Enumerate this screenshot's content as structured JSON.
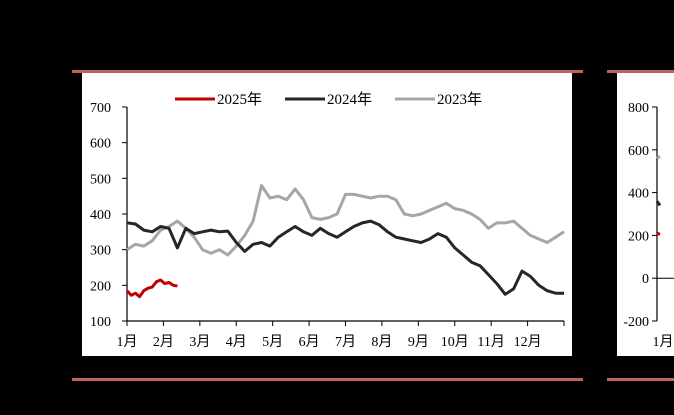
{
  "chart_data": [
    {
      "type": "line",
      "title": "",
      "xlabel": "",
      "ylabel": "",
      "ylim": [
        100,
        700
      ],
      "yticks": [
        100,
        200,
        300,
        400,
        500,
        600,
        700
      ],
      "xticks": [
        "1月",
        "2月",
        "3月",
        "4月",
        "5月",
        "6月",
        "7月",
        "8月",
        "9月",
        "10月",
        "11月",
        "12月"
      ],
      "grid": false,
      "legend_position": "top",
      "x_unit": "week-of-year (0-52)",
      "series": [
        {
          "name": "2025年",
          "color": "#c00000",
          "x": [
            0,
            0.5,
            1,
            1.5,
            2,
            2.5,
            3,
            3.5,
            4,
            4.5,
            5,
            5.5,
            6
          ],
          "values": [
            185,
            172,
            178,
            168,
            185,
            192,
            195,
            210,
            215,
            205,
            208,
            200,
            198
          ]
        },
        {
          "name": "2024年",
          "color": "#262626",
          "x": [
            0,
            1,
            2,
            3,
            4,
            5,
            6,
            7,
            8,
            9,
            10,
            11,
            12,
            13,
            14,
            15,
            16,
            17,
            18,
            19,
            20,
            21,
            22,
            23,
            24,
            25,
            26,
            27,
            28,
            29,
            30,
            31,
            32,
            33,
            34,
            35,
            36,
            37,
            38,
            39,
            40,
            41,
            42,
            43,
            44,
            45,
            46,
            47,
            48,
            49,
            50,
            51,
            52
          ],
          "values": [
            375,
            372,
            355,
            350,
            365,
            360,
            305,
            360,
            345,
            350,
            355,
            350,
            352,
            320,
            295,
            315,
            320,
            310,
            335,
            350,
            365,
            350,
            340,
            360,
            345,
            335,
            350,
            365,
            375,
            380,
            370,
            350,
            335,
            330,
            325,
            320,
            330,
            345,
            335,
            305,
            285,
            265,
            255,
            230,
            205,
            175,
            190,
            240,
            225,
            200,
            185,
            178,
            178
          ]
        },
        {
          "name": "2023年",
          "color": "#a6a6a6",
          "x": [
            0,
            1,
            2,
            3,
            4,
            5,
            6,
            7,
            8,
            9,
            10,
            11,
            12,
            13,
            14,
            15,
            16,
            17,
            18,
            19,
            20,
            21,
            22,
            23,
            24,
            25,
            26,
            27,
            28,
            29,
            30,
            31,
            32,
            33,
            34,
            35,
            36,
            37,
            38,
            39,
            40,
            41,
            42,
            43,
            44,
            45,
            46,
            47,
            48,
            49,
            50,
            51,
            52
          ],
          "values": [
            300,
            315,
            310,
            325,
            355,
            365,
            380,
            360,
            335,
            300,
            290,
            300,
            285,
            310,
            340,
            380,
            480,
            445,
            450,
            440,
            470,
            440,
            390,
            385,
            390,
            400,
            455,
            455,
            450,
            445,
            450,
            450,
            440,
            400,
            395,
            400,
            410,
            420,
            430,
            415,
            410,
            400,
            385,
            360,
            375,
            375,
            380,
            360,
            340,
            330,
            320,
            335,
            350
          ]
        }
      ]
    },
    {
      "type": "line",
      "title": "",
      "xlabel": "",
      "ylabel": "",
      "ylim": [
        -200,
        800
      ],
      "yticks": [
        -200,
        0,
        200,
        400,
        600,
        800
      ],
      "xticks": [
        "1月"
      ],
      "grid": false,
      "partially_visible": true,
      "series": [
        {
          "name": "2025年",
          "color": "#c00000",
          "x": [
            0,
            1
          ],
          "values": [
            210,
            205
          ]
        },
        {
          "name": "2024年",
          "color": "#262626",
          "x": [
            0,
            1
          ],
          "values": [
            360,
            340
          ]
        },
        {
          "name": "2023年",
          "color": "#a6a6a6",
          "x": [
            0,
            1
          ],
          "values": [
            560,
            570
          ]
        }
      ]
    }
  ],
  "legend": [
    {
      "label": "2025年",
      "color": "#c00000"
    },
    {
      "label": "2024年",
      "color": "#262626"
    },
    {
      "label": "2023年",
      "color": "#a6a6a6"
    }
  ],
  "frame": {
    "rule_color": "#c0605f"
  }
}
